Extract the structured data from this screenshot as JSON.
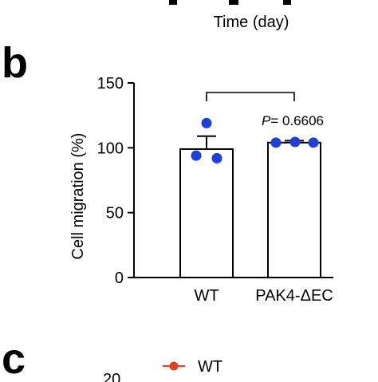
{
  "top_panel": {
    "xlabel": "Time (day)"
  },
  "panel_b": {
    "letter": "b"
  },
  "panel_c": {
    "letter": "c",
    "legend_label": "WT",
    "legend_color": "#e8401c",
    "partial_tick": "20"
  },
  "colors": {
    "axis": "#000000",
    "bar_fill": "#ffffff",
    "dots": "#1f3fd9",
    "legend_red": "#e8401c"
  },
  "chart_data": {
    "type": "bar",
    "title": "",
    "xlabel": "",
    "ylabel": "Cell migration (%)",
    "ylim": [
      0,
      150
    ],
    "yticks": [
      0,
      50,
      100,
      150
    ],
    "grid": false,
    "categories": [
      "WT",
      "PAK4-ΔEC"
    ],
    "values": [
      99,
      104
    ],
    "errors": [
      10,
      1.5
    ],
    "points": [
      [
        119,
        94,
        92
      ],
      [
        104,
        104.5,
        104
      ]
    ],
    "annotation": {
      "text": "P = 0.6606",
      "p_label": "P",
      "p_value": "= 0.6606",
      "between": [
        "WT",
        "PAK4-ΔEC"
      ]
    }
  }
}
